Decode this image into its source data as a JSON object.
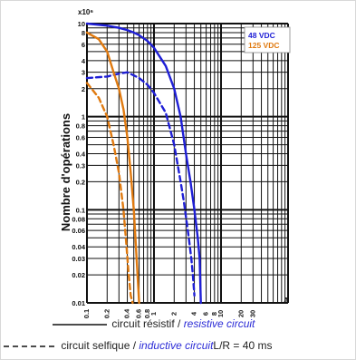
{
  "chart_data": {
    "type": "line",
    "x_scale": "log",
    "y_scale": "log",
    "xlim": [
      0.1,
      100
    ],
    "ylim": [
      0.01,
      10
    ],
    "y_multiplier": "x10⁶",
    "ylabel": "Nombre d'opérations",
    "x_unit": "A",
    "x_ticks": [
      {
        "v": 0.1,
        "label": "0.1"
      },
      {
        "v": 0.2,
        "label": "0.2"
      },
      {
        "v": 0.4,
        "label": "0.4"
      },
      {
        "v": 0.6,
        "label": "0.6"
      },
      {
        "v": 0.8,
        "label": "0.8"
      },
      {
        "v": 1,
        "label": "1"
      },
      {
        "v": 2,
        "label": "2"
      },
      {
        "v": 4,
        "label": "4"
      },
      {
        "v": 6,
        "label": "6"
      },
      {
        "v": 8,
        "label": "8"
      },
      {
        "v": 10,
        "label": "10"
      },
      {
        "v": 20,
        "label": "20"
      },
      {
        "v": 30,
        "label": "30"
      }
    ],
    "y_ticks": [
      {
        "v": 0.01,
        "label": "0.01"
      },
      {
        "v": 0.02,
        "label": "0.02"
      },
      {
        "v": 0.03,
        "label": "0.03"
      },
      {
        "v": 0.04,
        "label": "0.04"
      },
      {
        "v": 0.06,
        "label": "0.06"
      },
      {
        "v": 0.08,
        "label": "0.08"
      },
      {
        "v": 0.1,
        "label": "0.1"
      },
      {
        "v": 0.2,
        "label": "0.2"
      },
      {
        "v": 0.3,
        "label": "0.3"
      },
      {
        "v": 0.4,
        "label": "0.4"
      },
      {
        "v": 0.6,
        "label": "0.6"
      },
      {
        "v": 0.8,
        "label": "0.8"
      },
      {
        "v": 1,
        "label": "1"
      },
      {
        "v": 2,
        "label": "2"
      },
      {
        "v": 3,
        "label": "3"
      },
      {
        "v": 4,
        "label": "4"
      },
      {
        "v": 6,
        "label": "6"
      },
      {
        "v": 8,
        "label": "8"
      },
      {
        "v": 10,
        "label": "10"
      }
    ],
    "legend_entries": [
      {
        "label": "48 VDC",
        "color": "#1f1fd6"
      },
      {
        "label": "125 VDC",
        "color": "#e07a10"
      }
    ],
    "series": [
      {
        "voltage": "48 VDC",
        "circuit": "resistive",
        "style": "solid",
        "color": "#1f1fd6",
        "x": [
          0.1,
          0.2,
          0.3,
          0.4,
          0.5,
          0.6,
          0.8,
          1.0,
          1.5,
          2.0,
          2.5,
          3.0,
          3.5,
          4.0,
          4.5,
          4.8,
          5.0
        ],
        "y": [
          10,
          9.5,
          9.0,
          8.5,
          8.0,
          7.5,
          6.5,
          5.5,
          3.5,
          2.0,
          1.0,
          0.4,
          0.2,
          0.1,
          0.05,
          0.03,
          0.01
        ]
      },
      {
        "voltage": "48 VDC",
        "circuit": "inductive",
        "style": "dashed",
        "color": "#1f1fd6",
        "x": [
          0.1,
          0.2,
          0.3,
          0.4,
          0.6,
          0.8,
          1.0,
          1.5,
          2.0,
          2.5,
          2.8,
          3.1,
          3.3,
          3.6,
          3.8,
          4.0
        ],
        "y": [
          2.6,
          2.7,
          2.9,
          3.0,
          2.6,
          2.2,
          1.8,
          1.1,
          0.5,
          0.2,
          0.12,
          0.07,
          0.05,
          0.03,
          0.02,
          0.012
        ]
      },
      {
        "voltage": "125 VDC",
        "circuit": "resistive",
        "style": "solid",
        "color": "#e07a10",
        "x": [
          0.1,
          0.15,
          0.2,
          0.25,
          0.3,
          0.35,
          0.4,
          0.45,
          0.5,
          0.55,
          0.6
        ],
        "y": [
          8,
          6.8,
          5.0,
          3.0,
          2.0,
          1.2,
          0.6,
          0.25,
          0.1,
          0.03,
          0.01
        ]
      },
      {
        "voltage": "125 VDC",
        "circuit": "inductive",
        "style": "dashed",
        "color": "#e07a10",
        "x": [
          0.1,
          0.15,
          0.2,
          0.25,
          0.3,
          0.35,
          0.38,
          0.42,
          0.45,
          0.48
        ],
        "y": [
          2.3,
          1.6,
          1.0,
          0.5,
          0.25,
          0.1,
          0.05,
          0.02,
          0.012,
          0.01
        ]
      }
    ]
  },
  "legend": {
    "solid_fr": "circuit résistif / ",
    "solid_en": "resistive circuit",
    "dashed_fr": "circuit selfique / ",
    "dashed_en": "inductive circuit",
    "dashed_suffix": "L/R = 40 ms"
  }
}
